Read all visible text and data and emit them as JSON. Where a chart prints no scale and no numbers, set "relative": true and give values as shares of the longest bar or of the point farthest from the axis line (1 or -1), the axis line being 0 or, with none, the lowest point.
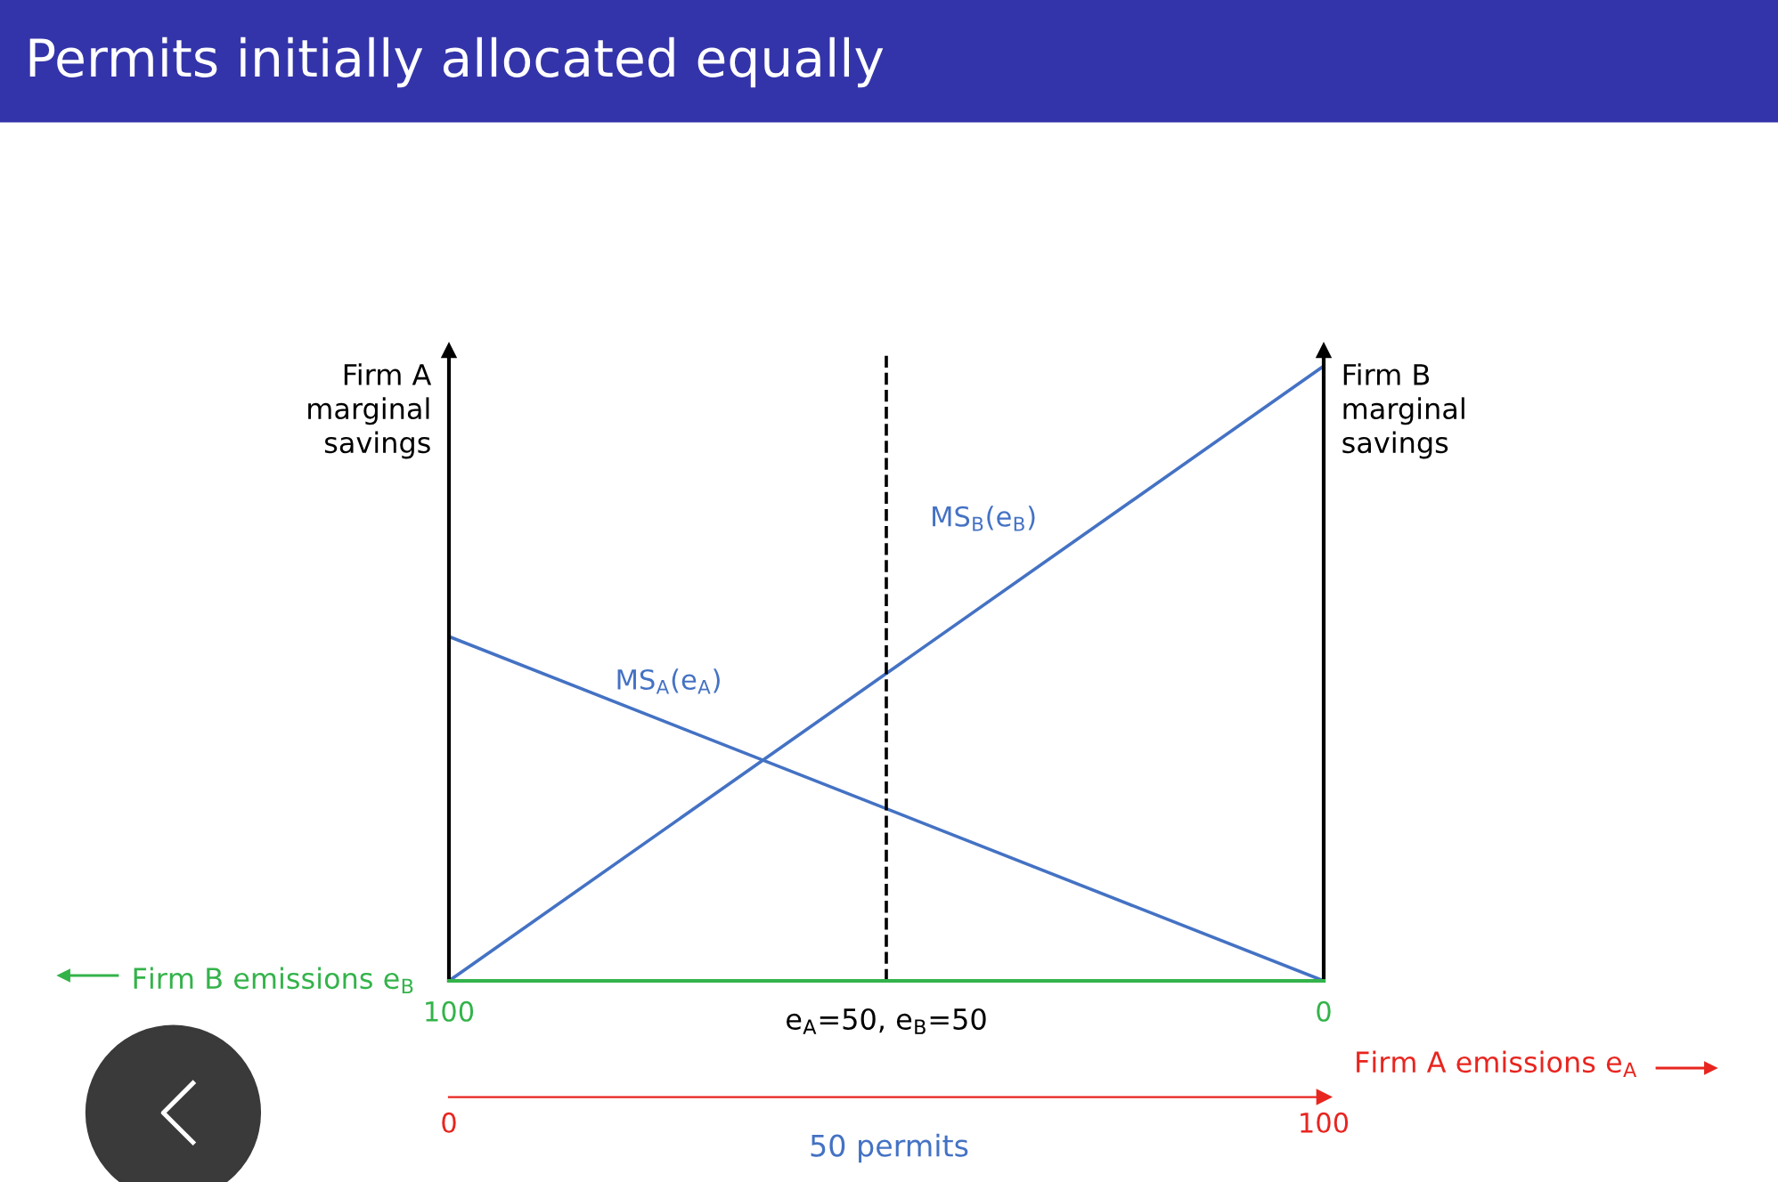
{
  "chart_data": {
    "type": "line",
    "title": "Permits initially allocated equally",
    "x": [
      0,
      100
    ],
    "xlim": [
      0,
      100
    ],
    "xticks": [
      0,
      100
    ],
    "xlabel": "Firm A emissions e$_{A}$",
    "x2lim": [
      100,
      0
    ],
    "x2ticks": [
      100,
      0
    ],
    "x2label": "Firm B emissions e$_{B}$",
    "ylabel": "Firm A\nmarginal\nsavings",
    "y2label": "Firm B\nmarginal\nsavings",
    "relative": true,
    "series": [
      {
        "name": "MS$_{A}$(e$_{A}$)",
        "color": "#4472c4",
        "values": [
          0.56,
          0
        ]
      },
      {
        "name": "MS$_{B}$(e$_{B}$)",
        "color": "#4472c4",
        "values": [
          0,
          1
        ]
      }
    ],
    "ref_lines": [
      {
        "axis": "x",
        "value": 50,
        "label": "e$_{A}$=50, e$_{B}$=50",
        "color": "#000000",
        "line_style": "dashed"
      }
    ],
    "annotations": [
      "50 permits"
    ]
  }
}
